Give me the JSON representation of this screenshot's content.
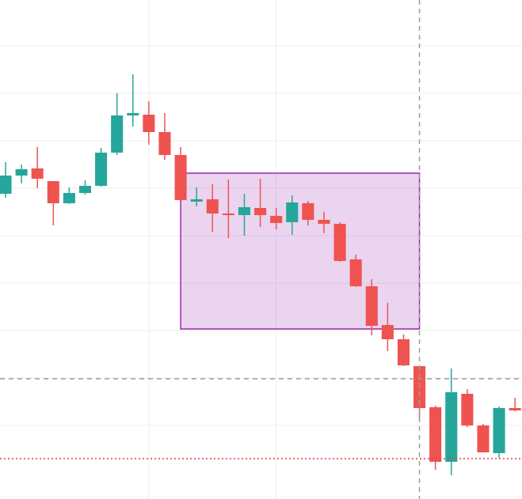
{
  "chart_data": {
    "type": "candlestick",
    "x": [
      0,
      1,
      2,
      3,
      4,
      5,
      6,
      7,
      8,
      9,
      10,
      11,
      12,
      13,
      14,
      15,
      16,
      17,
      18,
      19,
      20,
      21,
      22,
      23,
      24,
      25,
      26,
      27,
      28,
      29,
      30,
      31,
      32
    ],
    "open": [
      386,
      409,
      418,
      402,
      374,
      387,
      396,
      438,
      485,
      486,
      464,
      435,
      376,
      379,
      361,
      359,
      368,
      358,
      350,
      374,
      353,
      348,
      303,
      269,
      220,
      202,
      168,
      116,
      47,
      133,
      93,
      58,
      115
    ],
    "high": [
      426,
      423,
      445,
      402,
      394,
      403,
      444,
      513,
      537,
      503,
      488,
      445,
      394,
      398,
      404,
      386,
      405,
      368,
      384,
      377,
      363,
      350,
      309,
      278,
      248,
      208,
      168,
      118,
      165,
      139,
      95,
      117,
      128
    ],
    "low": [
      381,
      399,
      393,
      346,
      373,
      385,
      395,
      435,
      471,
      448,
      429,
      378,
      370,
      338,
      330,
      333,
      344,
      341,
      334,
      346,
      336,
      300,
      268,
      207,
      187,
      168,
      101,
      37,
      30,
      91,
      59,
      52,
      111
    ],
    "close": [
      409,
      417,
      405,
      374,
      387,
      396,
      438,
      485,
      488,
      464,
      435,
      378,
      379,
      361,
      359,
      369,
      359,
      349,
      375,
      353,
      348,
      301,
      269,
      219,
      202,
      169,
      115,
      47,
      135,
      93,
      59,
      115,
      112
    ],
    "up_color": "#26a69a",
    "down_color": "#ef5350",
    "xlim": [
      -0.348,
      32.44
    ],
    "ylim": [
      0,
      631
    ],
    "xgrid": [
      9,
      17
    ],
    "ygrid": [
      93,
      153,
      213,
      273,
      333,
      393,
      453,
      513,
      573
    ],
    "grid": true,
    "rectangle": {
      "x": [
        11,
        26
      ],
      "y": [
        215,
        412
      ],
      "color": "#9c27b0"
    },
    "crosshair": {
      "x": 26,
      "y": 152,
      "color": "#9e9e9e"
    },
    "price_line": {
      "y": 51,
      "color": "#e53935"
    }
  }
}
